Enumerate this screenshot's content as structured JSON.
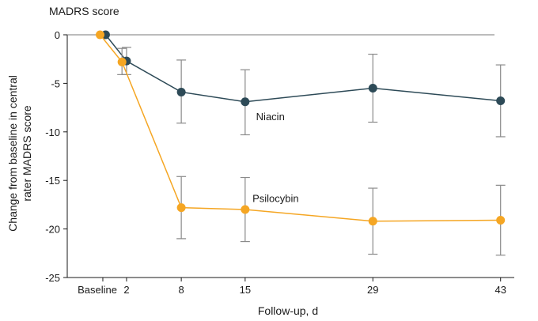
{
  "chart_data": {
    "type": "line",
    "title": "MADRS score",
    "xlabel": "Follow-up, d",
    "ylabel": "Change from baseline in central rater MADRS score",
    "ylabel_lines": [
      "Change from baseline in central",
      "rater MADRS score"
    ],
    "x_ticks": [
      {
        "value": -0.6,
        "label": "Baseline"
      },
      {
        "value": 2,
        "label": "2"
      },
      {
        "value": 8,
        "label": "8"
      },
      {
        "value": 15,
        "label": "15"
      },
      {
        "value": 29,
        "label": "29"
      },
      {
        "value": 43,
        "label": "43"
      }
    ],
    "xlim": [
      -4.5,
      44.5
    ],
    "ylim": [
      -25,
      0
    ],
    "y_ticks": [
      0,
      -5,
      -10,
      -15,
      -20,
      -25
    ],
    "grid": "zero line only",
    "series": [
      {
        "name": "Niacin",
        "color": "#2d4a57",
        "points": [
          {
            "x": -0.3,
            "y": 0.0,
            "err_low": null,
            "err_high": null
          },
          {
            "x": 2,
            "y": -2.7,
            "err_low": -4.1,
            "err_high": -1.3
          },
          {
            "x": 8,
            "y": -5.9,
            "err_low": -9.1,
            "err_high": -2.6
          },
          {
            "x": 15,
            "y": -6.9,
            "err_low": -10.3,
            "err_high": -3.6
          },
          {
            "x": 29,
            "y": -5.5,
            "err_low": -9.0,
            "err_high": -2.0
          },
          {
            "x": 43,
            "y": -6.8,
            "err_low": -10.5,
            "err_high": -3.1
          }
        ],
        "label_pos": {
          "x": 16.2,
          "y": -8.4
        }
      },
      {
        "name": "Psilocybin",
        "color": "#f5a623",
        "points": [
          {
            "x": -0.9,
            "y": 0.0,
            "err_low": null,
            "err_high": null
          },
          {
            "x": 1.5,
            "y": -2.8,
            "err_low": -4.1,
            "err_high": -1.4
          },
          {
            "x": 8,
            "y": -17.8,
            "err_low": -21.0,
            "err_high": -14.6
          },
          {
            "x": 15,
            "y": -18.0,
            "err_low": -21.3,
            "err_high": -14.7
          },
          {
            "x": 29,
            "y": -19.2,
            "err_low": -22.6,
            "err_high": -15.8
          },
          {
            "x": 43,
            "y": -19.1,
            "err_low": -22.7,
            "err_high": -15.5
          }
        ],
        "label_pos": {
          "x": 15.8,
          "y": -16.8
        }
      }
    ]
  }
}
